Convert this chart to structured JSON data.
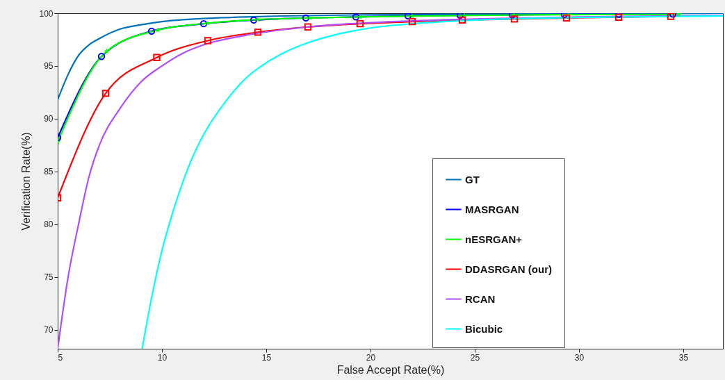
{
  "chart_data": {
    "type": "line",
    "xlabel": "False Accept Rate(%)",
    "ylabel": "Verification Rate(%)",
    "xlim": [
      5,
      36.9
    ],
    "ylim": [
      68.2,
      100
    ],
    "xticks": [
      5,
      10,
      15,
      20,
      25,
      30,
      35
    ],
    "yticks": [
      70,
      75,
      80,
      85,
      90,
      95,
      100
    ],
    "grid": false,
    "legend": "right",
    "series": [
      {
        "name": "GT",
        "color": "#0072bd",
        "marker": "none",
        "x": [
          5,
          5.5,
          6,
          6.5,
          7,
          8,
          9,
          10,
          12,
          15,
          20,
          25,
          30,
          36.9
        ],
        "values": [
          91.8,
          94.2,
          96.0,
          97.0,
          97.6,
          98.5,
          98.9,
          99.2,
          99.5,
          99.7,
          99.85,
          99.9,
          99.95,
          100
        ]
      },
      {
        "name": "MASRGAN",
        "color": "#0000ff",
        "marker": "circle",
        "x": [
          5,
          7.1,
          9.5,
          12,
          14.4,
          16.9,
          19.3,
          21.8,
          24.3,
          26.8,
          29.3,
          31.9,
          34.5
        ],
        "values": [
          88.2,
          95.9,
          98.3,
          99.0,
          99.35,
          99.55,
          99.65,
          99.75,
          99.8,
          99.85,
          99.88,
          99.9,
          99.92
        ]
      },
      {
        "name": "nESRGAN+",
        "color": "#00ff00",
        "marker": "star",
        "x": [
          5,
          7.35,
          9.8,
          12.2,
          14.6,
          17.1,
          19.5,
          22,
          24.5,
          26.9,
          29.5,
          34.8
        ],
        "values": [
          87.8,
          96.4,
          98.4,
          99.05,
          99.4,
          99.55,
          99.65,
          99.72,
          99.78,
          99.83,
          99.86,
          99.9
        ]
      },
      {
        "name": "DDASRGAN (our)",
        "color": "#ff0000",
        "marker": "square",
        "x": [
          5,
          7.3,
          9.75,
          12.2,
          14.6,
          17,
          19.5,
          22,
          24.4,
          26.9,
          29.4,
          31.9,
          34.4
        ],
        "values": [
          82.5,
          92.4,
          95.8,
          97.4,
          98.2,
          98.7,
          99.0,
          99.2,
          99.35,
          99.45,
          99.55,
          99.62,
          99.7
        ]
      },
      {
        "name": "RCAN",
        "color": "#b04dff",
        "marker": "none",
        "x": [
          5,
          5.5,
          6,
          6.5,
          7,
          8,
          9,
          10,
          11,
          12,
          14,
          17,
          20,
          25,
          30,
          36.9
        ],
        "values": [
          68.2,
          75,
          80,
          84.5,
          87.5,
          91,
          93.5,
          95.0,
          96.2,
          97.0,
          97.9,
          98.7,
          99.1,
          99.45,
          99.65,
          99.8
        ]
      },
      {
        "name": "Bicubic",
        "color": "#00ffff",
        "marker": "none",
        "x": [
          9.05,
          9.5,
          10,
          10.5,
          11,
          11.5,
          12,
          13,
          14,
          15,
          16,
          17,
          18,
          20,
          22,
          25,
          30,
          36.9
        ],
        "values": [
          68.2,
          73,
          77.5,
          81,
          84,
          86.5,
          88.5,
          91.5,
          93.8,
          95.3,
          96.4,
          97.2,
          97.8,
          98.6,
          99.0,
          99.35,
          99.6,
          99.75
        ]
      }
    ]
  }
}
